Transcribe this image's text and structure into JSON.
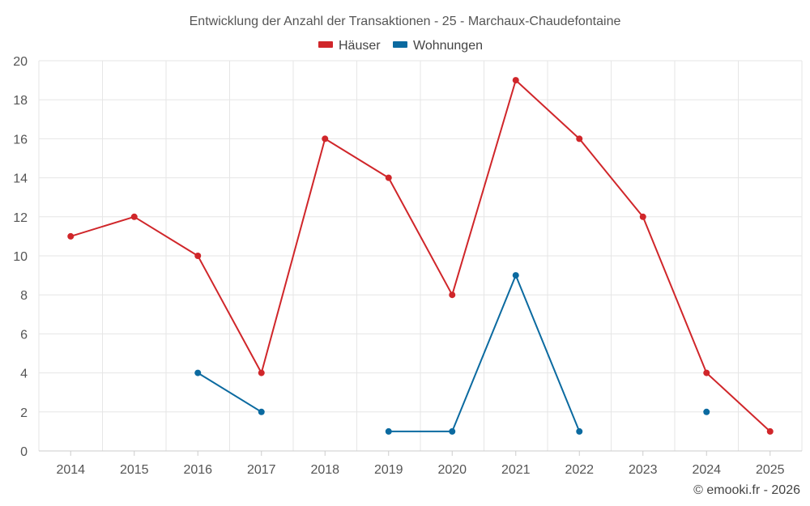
{
  "chart_data": {
    "type": "line",
    "title": "Entwicklung der Anzahl der Transaktionen - 25 - Marchaux-Chaudefontaine",
    "categories": [
      "2014",
      "2015",
      "2016",
      "2017",
      "2018",
      "2019",
      "2020",
      "2021",
      "2022",
      "2023",
      "2024",
      "2025"
    ],
    "ylim": [
      0,
      20
    ],
    "yticks": [
      0,
      2,
      4,
      6,
      8,
      10,
      12,
      14,
      16,
      18,
      20
    ],
    "grid": true,
    "legend_position": "top-center",
    "series": [
      {
        "name": "Häuser",
        "color": "#d0262a",
        "values": [
          11,
          12,
          10,
          4,
          16,
          14,
          8,
          19,
          16,
          12,
          4,
          1
        ]
      },
      {
        "name": "Wohnungen",
        "color": "#0b6aa0",
        "values": [
          null,
          null,
          4,
          2,
          null,
          1,
          1,
          9,
          1,
          null,
          2,
          null
        ]
      }
    ],
    "credit": "© emooki.fr - 2026"
  }
}
